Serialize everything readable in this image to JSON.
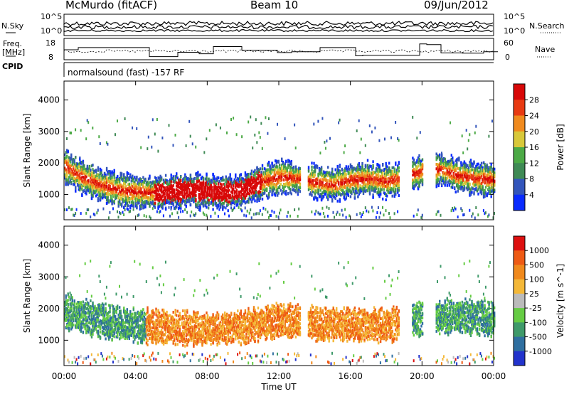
{
  "header": {
    "station": "McMurdo (fitACF)",
    "beam": "Beam 10",
    "date": "09/Jun/2012"
  },
  "top_labels": {
    "nsky": "N.Sky",
    "freq_line1": "Freq.",
    "freq_line2": "[MHz]",
    "cpid": "CPID",
    "nsearch": "N.Search",
    "nave": "Nave",
    "noise_tick_hi": "10^5",
    "noise_tick_lo": "10^0",
    "freq_tick_hi": "18",
    "freq_tick_lo": "8",
    "nave_tick_hi": "60",
    "nave_tick_lo": "0",
    "cpid_text": "normalsound (fast) -157 RF"
  },
  "chart_data": [
    {
      "type": "heatmap",
      "panel": "power",
      "ylabel": "Slant Range [km]",
      "xlabel": "",
      "x_ticks": [
        "00:00",
        "04:00",
        "08:00",
        "12:00",
        "16:00",
        "20:00",
        "00:00"
      ],
      "y_ticks": [
        1000,
        2000,
        3000,
        4000
      ],
      "ylim": [
        200,
        4600
      ],
      "colorbar_label": "Power [dB]",
      "colorbar_ticks": [
        "4",
        "8",
        "12",
        "16",
        "20",
        "24",
        "28"
      ],
      "colorbar_colors": [
        "#0a2bff",
        "#3355bb",
        "#3f8a55",
        "#4caa46",
        "#d8c83a",
        "#f08a1e",
        "#e83a12",
        "#d80808"
      ],
      "scatter_bands": [
        {
          "t": 0.0,
          "range": 1900
        },
        {
          "t": 1.0,
          "range": 1550
        },
        {
          "t": 2.0,
          "range": 1300
        },
        {
          "t": 3.0,
          "range": 1150
        },
        {
          "t": 4.0,
          "range": 1080
        },
        {
          "t": 5.0,
          "range": 1050
        },
        {
          "t": 6.0,
          "range": 1100
        },
        {
          "t": 7.0,
          "range": 1150
        },
        {
          "t": 8.0,
          "range": 1100
        },
        {
          "t": 9.0,
          "range": 1050
        },
        {
          "t": 10.0,
          "range": 1150
        },
        {
          "t": 11.0,
          "range": 1400
        },
        {
          "t": 12.0,
          "range": 1550
        },
        {
          "t": 13.0,
          "range": 1500
        },
        {
          "t": 14.0,
          "range": 1400
        },
        {
          "t": 15.0,
          "range": 1300
        },
        {
          "t": 16.0,
          "range": 1450
        },
        {
          "t": 17.0,
          "range": 1500
        },
        {
          "t": 18.0,
          "range": 1400
        },
        {
          "t": 19.0,
          "range": 1550
        },
        {
          "t": 20.0,
          "range": 1750
        },
        {
          "t": 21.0,
          "range": 1800
        },
        {
          "t": 22.0,
          "range": 1600
        },
        {
          "t": 23.0,
          "range": 1500
        },
        {
          "t": 24.0,
          "range": 1450
        }
      ]
    },
    {
      "type": "heatmap",
      "panel": "velocity",
      "ylabel": "Slant Range [km]",
      "xlabel": "Time UT",
      "x_ticks": [
        "00:00",
        "04:00",
        "08:00",
        "12:00",
        "16:00",
        "20:00",
        "00:00"
      ],
      "y_ticks": [
        1000,
        2000,
        3000,
        4000
      ],
      "ylim": [
        200,
        4600
      ],
      "colorbar_label": "Velocity [m s^-1]",
      "colorbar_ticks": [
        "1000",
        "500",
        "100",
        "25",
        "-25",
        "-100",
        "-500",
        "-1000"
      ],
      "colorbar_colors": [
        "#2233cc",
        "#2f6fa0",
        "#3f9a6a",
        "#66cc44",
        "#bbbbbb",
        "#f4b838",
        "#f0891c",
        "#ee5a14",
        "#dd1010"
      ],
      "scatter_bands": [
        {
          "t": 0.0,
          "range": 1900
        },
        {
          "t": 2.0,
          "range": 1600
        },
        {
          "t": 4.0,
          "range": 1450
        },
        {
          "t": 6.0,
          "range": 1400
        },
        {
          "t": 8.0,
          "range": 1350
        },
        {
          "t": 10.0,
          "range": 1400
        },
        {
          "t": 12.0,
          "range": 1650
        },
        {
          "t": 14.0,
          "range": 1500
        },
        {
          "t": 16.0,
          "range": 1500
        },
        {
          "t": 18.0,
          "range": 1450
        },
        {
          "t": 20.0,
          "range": 1700
        },
        {
          "t": 22.0,
          "range": 1750
        },
        {
          "t": 24.0,
          "range": 1650
        }
      ]
    }
  ]
}
